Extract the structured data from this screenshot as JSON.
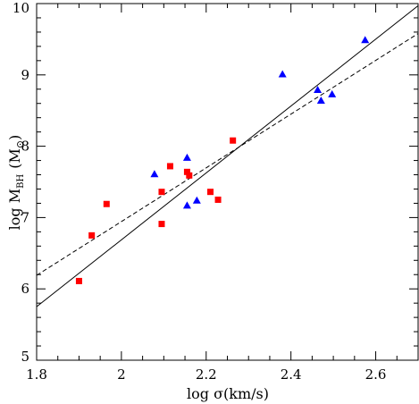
{
  "chart_data": {
    "type": "scatter",
    "title": "",
    "xlabel": "log σ(km/s)",
    "ylabel": {
      "prefix": "log M",
      "subscript": "BH",
      "unit": "(M",
      "unit_symbol": "⊙",
      "unit_close": ")"
    },
    "xlim": [
      1.8,
      2.7
    ],
    "ylim": [
      5,
      10
    ],
    "x_ticks": [
      "1.8",
      "2",
      "2.2",
      "2.4",
      "2.6"
    ],
    "y_ticks": [
      "5",
      "6",
      "7",
      "8",
      "9",
      "10"
    ],
    "grid": false,
    "series": [
      {
        "marker": "square",
        "color": "#ff0000",
        "points": [
          {
            "x": 1.9,
            "y": 6.11
          },
          {
            "x": 1.93,
            "y": 6.75
          },
          {
            "x": 1.965,
            "y": 7.19
          },
          {
            "x": 2.095,
            "y": 6.91
          },
          {
            "x": 2.095,
            "y": 7.36
          },
          {
            "x": 2.115,
            "y": 7.72
          },
          {
            "x": 2.155,
            "y": 7.64
          },
          {
            "x": 2.16,
            "y": 7.59
          },
          {
            "x": 2.21,
            "y": 7.36
          },
          {
            "x": 2.228,
            "y": 7.25
          },
          {
            "x": 2.263,
            "y": 8.08
          }
        ]
      },
      {
        "marker": "triangle",
        "color": "#0000ff",
        "points": [
          {
            "x": 2.078,
            "y": 7.61
          },
          {
            "x": 2.155,
            "y": 7.84
          },
          {
            "x": 2.155,
            "y": 7.17
          },
          {
            "x": 2.178,
            "y": 7.24
          },
          {
            "x": 2.38,
            "y": 9.01
          },
          {
            "x": 2.463,
            "y": 8.79
          },
          {
            "x": 2.471,
            "y": 8.64
          },
          {
            "x": 2.497,
            "y": 8.73
          },
          {
            "x": 2.575,
            "y": 9.49
          }
        ]
      }
    ],
    "lines": [
      {
        "style": "solid",
        "color": "#000000",
        "x": [
          1.8,
          2.7
        ],
        "y": [
          5.75,
          9.97
        ]
      },
      {
        "style": "dashed",
        "color": "#000000",
        "x": [
          1.8,
          2.7
        ],
        "y": [
          6.19,
          9.58
        ]
      }
    ]
  }
}
